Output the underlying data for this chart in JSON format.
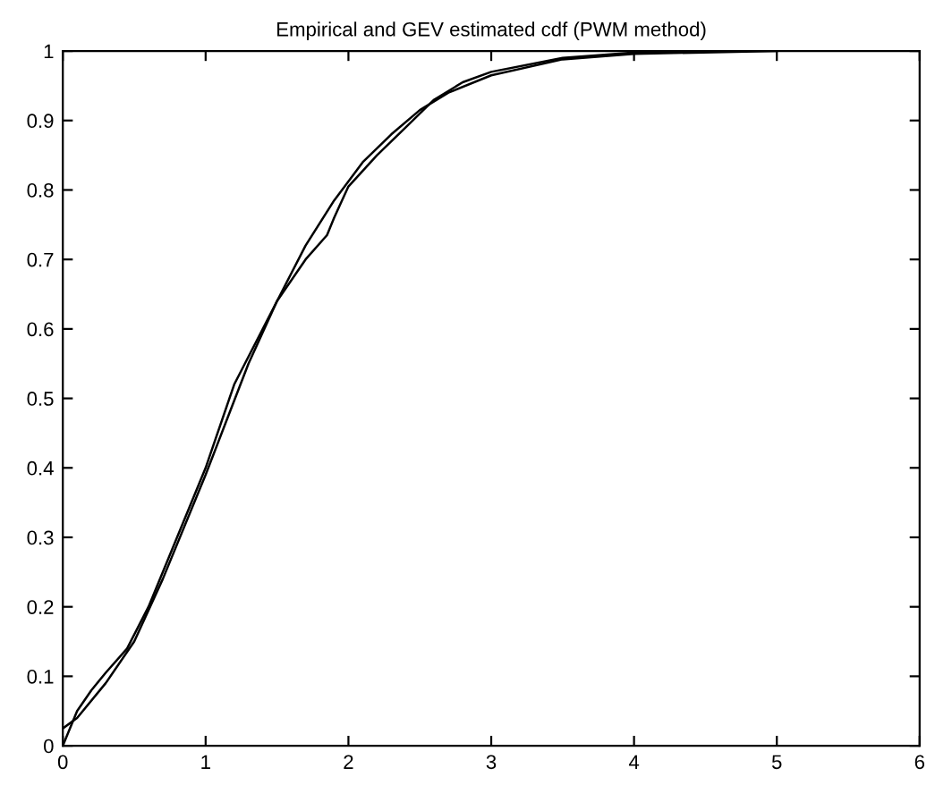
{
  "chart_data": {
    "type": "line",
    "title": "Empirical and GEV estimated cdf (PWM method)",
    "xlim": [
      0,
      6
    ],
    "ylim": [
      0,
      1
    ],
    "xticks": [
      0,
      1,
      2,
      3,
      4,
      5,
      6
    ],
    "yticks": [
      0,
      0.1,
      0.2,
      0.3,
      0.4,
      0.5,
      0.6,
      0.7,
      0.8,
      0.9,
      1
    ],
    "grid": false,
    "marker": "none",
    "line_style": "solid",
    "series": [
      {
        "color": "#000000",
        "x": [
          0,
          0.1,
          0.2,
          0.3,
          0.45,
          0.6,
          0.8,
          1.0,
          1.2,
          1.5,
          1.7,
          1.85,
          1.9,
          2.0,
          2.2,
          2.4,
          2.6,
          2.8,
          3.0,
          3.5,
          4.0,
          4.5
        ],
        "values": [
          0,
          0.05,
          0.08,
          0.105,
          0.14,
          0.2,
          0.3,
          0.4,
          0.52,
          0.64,
          0.7,
          0.735,
          0.76,
          0.805,
          0.85,
          0.89,
          0.93,
          0.955,
          0.97,
          0.99,
          0.998,
          1.0
        ]
      },
      {
        "color": "#000000",
        "x": [
          0,
          0.1,
          0.3,
          0.5,
          0.7,
          1.0,
          1.3,
          1.5,
          1.7,
          1.9,
          2.1,
          2.3,
          2.5,
          2.7,
          3.0,
          3.5,
          4.0,
          5.0
        ],
        "values": [
          0.025,
          0.04,
          0.09,
          0.15,
          0.24,
          0.39,
          0.55,
          0.64,
          0.72,
          0.785,
          0.84,
          0.88,
          0.915,
          0.94,
          0.965,
          0.988,
          0.996,
          1.0
        ]
      }
    ]
  }
}
